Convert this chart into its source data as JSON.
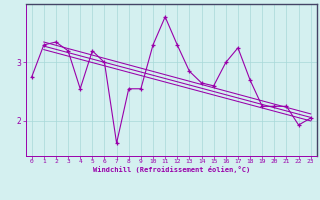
{
  "x": [
    0,
    1,
    2,
    3,
    4,
    5,
    6,
    7,
    8,
    9,
    10,
    11,
    12,
    13,
    14,
    15,
    16,
    17,
    18,
    19,
    20,
    21,
    22,
    23
  ],
  "y": [
    2.75,
    3.3,
    3.35,
    3.2,
    2.55,
    3.2,
    3.0,
    1.62,
    2.55,
    2.55,
    3.3,
    3.78,
    3.3,
    2.85,
    2.65,
    2.6,
    3.0,
    3.25,
    2.7,
    2.25,
    2.25,
    2.25,
    1.93,
    2.05
  ],
  "trend1_x": [
    1,
    23
  ],
  "trend1_y": [
    3.35,
    2.12
  ],
  "trend2_x": [
    1,
    23
  ],
  "trend2_y": [
    3.28,
    2.06
  ],
  "trend3_x": [
    1,
    23
  ],
  "trend3_y": [
    3.22,
    2.0
  ],
  "line_color": "#9900aa",
  "bg_color": "#d4f0f0",
  "grid_color": "#a8d8d8",
  "border_color": "#444466",
  "xlabel": "Windchill (Refroidissement éolien,°C)",
  "xlim": [
    -0.5,
    23.5
  ],
  "ylim": [
    1.4,
    4.0
  ],
  "yticks": [
    2.0,
    3.0
  ],
  "xticks": [
    0,
    1,
    2,
    3,
    4,
    5,
    6,
    7,
    8,
    9,
    10,
    11,
    12,
    13,
    14,
    15,
    16,
    17,
    18,
    19,
    20,
    21,
    22,
    23
  ]
}
